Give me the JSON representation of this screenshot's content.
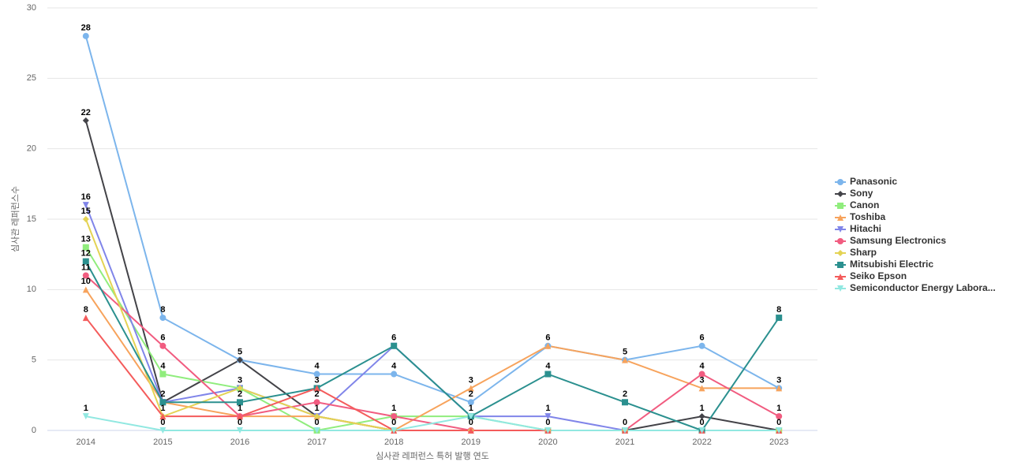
{
  "chart_data": {
    "type": "line",
    "x_label": "심사관 레퍼런스 특허 발행 연도",
    "y_label": "심사관 레퍼런스수",
    "categories": [
      "2014",
      "2015",
      "2016",
      "2017",
      "2018",
      "2019",
      "2020",
      "2021",
      "2022",
      "2023"
    ],
    "ylim": [
      0,
      30
    ],
    "yticks": [
      0,
      5,
      10,
      15,
      20,
      25,
      30
    ],
    "grid": true,
    "legend": "right",
    "series": [
      {
        "name": "Panasonic",
        "color": "#7cb5ec",
        "marker": "circle",
        "values": [
          28,
          8,
          5,
          4,
          4,
          2,
          6,
          5,
          6,
          3
        ]
      },
      {
        "name": "Sony",
        "color": "#434348",
        "marker": "diamond",
        "values": [
          22,
          2,
          5,
          1,
          0,
          0,
          0,
          0,
          1,
          0
        ]
      },
      {
        "name": "Canon",
        "color": "#90ed7d",
        "marker": "square",
        "values": [
          13,
          4,
          3,
          0,
          1,
          1,
          0,
          0,
          0,
          0
        ]
      },
      {
        "name": "Toshiba",
        "color": "#f7a35c",
        "marker": "triangle",
        "values": [
          10,
          2,
          1,
          1,
          0,
          3,
          6,
          5,
          3,
          3
        ]
      },
      {
        "name": "Hitachi",
        "color": "#8085e9",
        "marker": "triangle-down",
        "values": [
          16,
          2,
          3,
          1,
          6,
          1,
          1,
          0,
          0,
          0
        ]
      },
      {
        "name": "Samsung Electronics",
        "color": "#f15c80",
        "marker": "circle",
        "values": [
          11,
          6,
          1,
          2,
          1,
          0,
          0,
          0,
          4,
          1
        ]
      },
      {
        "name": "Sharp",
        "color": "#e4d354",
        "marker": "diamond",
        "values": [
          15,
          1,
          3,
          1,
          0,
          0,
          0,
          0,
          0,
          0
        ]
      },
      {
        "name": "Mitsubishi Electric",
        "color": "#2b908f",
        "marker": "square",
        "values": [
          12,
          2,
          2,
          3,
          6,
          1,
          4,
          2,
          0,
          8
        ]
      },
      {
        "name": "Seiko Epson",
        "color": "#f45b5b",
        "marker": "triangle",
        "values": [
          8,
          1,
          1,
          3,
          0,
          0,
          0,
          0,
          0,
          0
        ]
      },
      {
        "name": "Semiconductor Energy Labora...",
        "color": "#91e8e1",
        "marker": "triangle-down",
        "values": [
          1,
          0,
          0,
          0,
          0,
          1,
          0,
          0,
          0,
          0
        ]
      }
    ]
  }
}
